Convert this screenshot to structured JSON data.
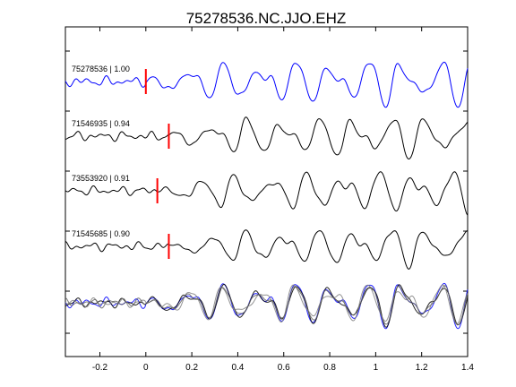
{
  "chart_data": {
    "type": "line",
    "title": "75278536.NC.JJO.EHZ",
    "xlabel": "",
    "ylabel": "",
    "xlim": [
      -0.35,
      1.4
    ],
    "x_ticks": [
      -0.2,
      0,
      0.2,
      0.4,
      0.6,
      0.8,
      1,
      1.2,
      1.4
    ],
    "x_tick_labels": [
      "-0.2",
      "0",
      "0.2",
      "0.4",
      "0.6",
      "0.8",
      "1",
      "1.2",
      "1.4"
    ],
    "grid": false,
    "legend": "none",
    "series": [
      {
        "name": "75278536 | 1.00",
        "color": "#0000ff",
        "pick_time": 0.0,
        "onset": 0.0,
        "scale": 1.0,
        "noise": 0.35
      },
      {
        "name": "71546935 | 0.94",
        "color": "#000000",
        "pick_time": 0.1,
        "onset": 0.1,
        "scale": 0.95,
        "noise": 0.25
      },
      {
        "name": "73553920 | 0.91",
        "color": "#000000",
        "pick_time": 0.05,
        "onset": 0.05,
        "scale": 0.9,
        "noise": 0.3
      },
      {
        "name": "71545685 | 0.90",
        "color": "#000000",
        "pick_time": 0.1,
        "onset": 0.1,
        "scale": 0.9,
        "noise": 0.2
      }
    ],
    "stacked_overlay": {
      "colors": [
        "#0000ff",
        "#000000",
        "#808080",
        "#606060"
      ]
    },
    "pick_marker_color": "#ff0000"
  }
}
